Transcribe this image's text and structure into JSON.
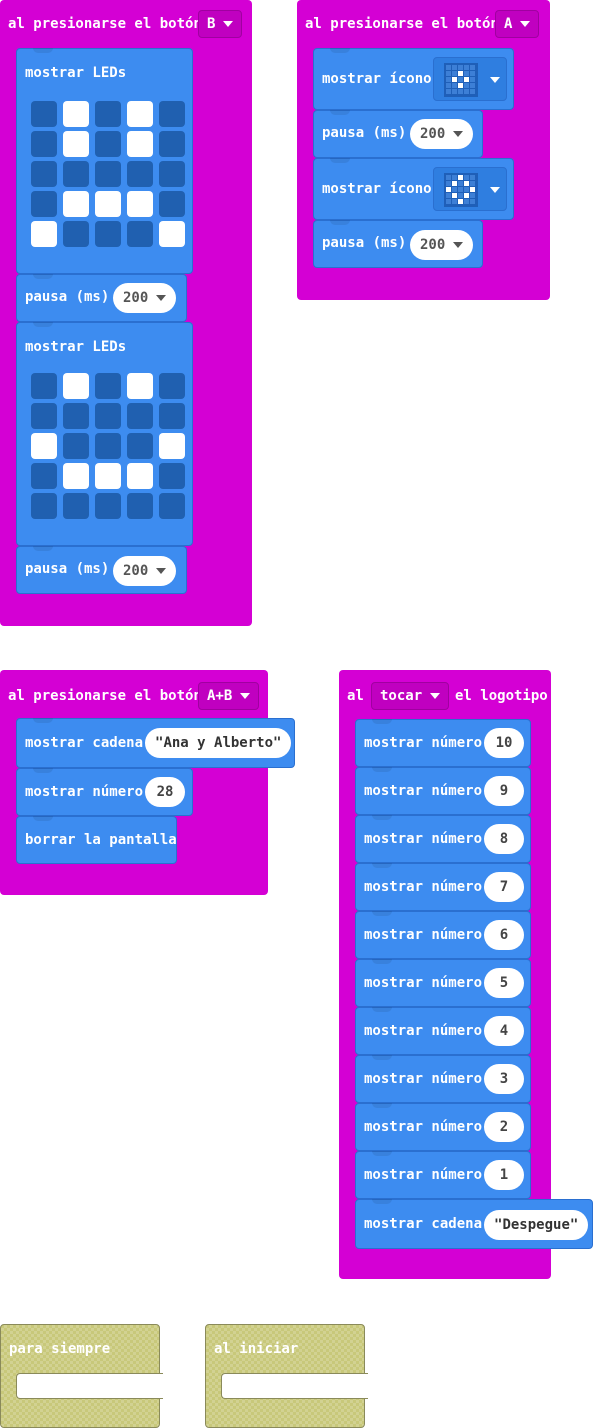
{
  "colors": {
    "event": "#d400d4",
    "block": "#3d8cf0",
    "led_on": "#ffffff",
    "led_off": "#2060b0",
    "basic": "#c8c87a"
  },
  "event_b": {
    "label": "al presionarse el botón",
    "button": "B",
    "show_leds_label": "mostrar LEDs",
    "leds1": [
      [
        0,
        1,
        0,
        1,
        0
      ],
      [
        0,
        1,
        0,
        1,
        0
      ],
      [
        0,
        0,
        0,
        0,
        0
      ],
      [
        0,
        1,
        1,
        1,
        0
      ],
      [
        1,
        0,
        0,
        0,
        1
      ]
    ],
    "pause_label": "pausa (ms)",
    "pause1_value": "200",
    "show_leds2_label": "mostrar LEDs",
    "leds2": [
      [
        0,
        1,
        0,
        1,
        0
      ],
      [
        0,
        0,
        0,
        0,
        0
      ],
      [
        1,
        0,
        0,
        0,
        1
      ],
      [
        0,
        1,
        1,
        1,
        0
      ],
      [
        0,
        0,
        0,
        0,
        0
      ]
    ],
    "pause2_label": "pausa (ms)",
    "pause2_value": "200"
  },
  "event_a": {
    "label": "al presionarse el botón",
    "button": "A",
    "show_icon1_label": "mostrar ícono",
    "icon1": "small-diamond-icon",
    "pause1_label": "pausa (ms)",
    "pause1_value": "200",
    "show_icon2_label": "mostrar ícono",
    "icon2": "diamond-icon",
    "pause2_label": "pausa (ms)",
    "pause2_value": "200"
  },
  "event_ab": {
    "label": "al presionarse el botón",
    "button": "A+B",
    "show_string_label": "mostrar cadena",
    "string_value": "Ana y Alberto",
    "show_number_label": "mostrar número",
    "number_value": "28",
    "clear_label": "borrar la pantalla"
  },
  "event_logo": {
    "prefix": "al",
    "action": "tocar",
    "suffix": "el logotipo",
    "number_label": "mostrar número",
    "numbers": [
      "10",
      "9",
      "8",
      "7",
      "6",
      "5",
      "4",
      "3",
      "2",
      "1"
    ],
    "show_string_label": "mostrar cadena",
    "string_value": "Despegue"
  },
  "forever": {
    "label": "para siempre"
  },
  "on_start": {
    "label": "al iniciar"
  }
}
